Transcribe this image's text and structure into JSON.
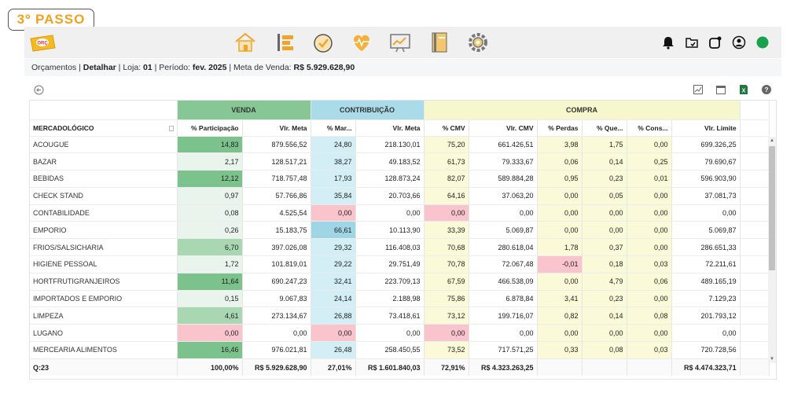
{
  "step_badge": "3º PASSO",
  "logo_text": "ORÇ",
  "breadcrumb": {
    "section": "Orçamentos",
    "sep1": " | ",
    "page": "Detalhar",
    "store_label": " | Loja: ",
    "store": "01",
    "period_label": " | Período: ",
    "period": "fev. 2025",
    "goal_label": " | Meta de Venda: ",
    "goal": "R$ 5.929.628,90"
  },
  "groups": {
    "venda": "VENDA",
    "contribuicao": "CONTRIBUIÇÃO",
    "compra": "COMPRA"
  },
  "headers": [
    "MERCADOLÓGICO",
    "% Participação",
    "Vlr. Meta",
    "% Mar...",
    "Vlr. Meta",
    "% CMV",
    "Vlr. CMV",
    "% Perdas",
    "% Que...",
    "% Cons...",
    "Vlr. Limite"
  ],
  "rows": [
    [
      "ACOUGUE",
      "14,83",
      "879.556,52",
      "24,80",
      "218.130,01",
      "75,20",
      "661.426,51",
      "3,98",
      "1,75",
      "0,00",
      "699.326,25"
    ],
    [
      "BAZAR",
      "2,17",
      "128.517,21",
      "38,27",
      "49.183,52",
      "61,73",
      "79.333,67",
      "0,06",
      "0,14",
      "0,25",
      "79.690,67"
    ],
    [
      "BEBIDAS",
      "12,12",
      "718.757,48",
      "17,93",
      "128.873,24",
      "82,07",
      "589.884,28",
      "0,95",
      "0,23",
      "0,01",
      "596.903,90"
    ],
    [
      "CHECK STAND",
      "0,97",
      "57.766,86",
      "35,84",
      "20.703,66",
      "64,16",
      "37.063,20",
      "0,00",
      "0,05",
      "0,00",
      "37.081,73"
    ],
    [
      "CONTABILIDADE",
      "0,08",
      "4.525,54",
      "0,00",
      "0,00",
      "0,00",
      "0,00",
      "0,00",
      "0,00",
      "0,00",
      "0,00"
    ],
    [
      "EMPORIO",
      "0,26",
      "15.183,75",
      "66,61",
      "10.113,90",
      "33,39",
      "5.069,87",
      "0,00",
      "0,00",
      "0,00",
      "5.069,87"
    ],
    [
      "FRIOS/SALSICHARIA",
      "6,70",
      "397.026,08",
      "29,32",
      "116.408,03",
      "70,68",
      "280.618,04",
      "1,78",
      "0,37",
      "0,00",
      "286.651,33"
    ],
    [
      "HIGIENE PESSOAL",
      "1,72",
      "101.819,01",
      "29,22",
      "29.751,49",
      "70,78",
      "72.067,48",
      "-0,01",
      "0,18",
      "0,03",
      "72.211,61"
    ],
    [
      "HORTFRUTIGRANJEIROS",
      "11,64",
      "690.247,23",
      "32,41",
      "223.709,13",
      "67,59",
      "466.538,09",
      "0,00",
      "4,79",
      "0,06",
      "489.165,19"
    ],
    [
      "IMPORTADOS E EMPORIO",
      "0,15",
      "9.067,83",
      "24,14",
      "2.188,98",
      "75,86",
      "6.878,84",
      "3,41",
      "0,23",
      "0,00",
      "7.129,23"
    ],
    [
      "LIMPEZA",
      "4,61",
      "273.134,67",
      "26,88",
      "73.418,61",
      "73,12",
      "199.716,07",
      "0,82",
      "0,14",
      "0,08",
      "201.793,12"
    ],
    [
      "LUGANO",
      "0,00",
      "0,00",
      "0,00",
      "0,00",
      "0,00",
      "0,00",
      "0,00",
      "0,00",
      "0,00",
      "0,00"
    ],
    [
      "MERCEARIA ALIMENTOS",
      "16,46",
      "976.021,81",
      "26,48",
      "258.450,55",
      "73,52",
      "717.571,25",
      "0,33",
      "0,08",
      "0,03",
      "720.728,56"
    ]
  ],
  "footer": [
    "Q:23",
    "100,00%",
    "R$ 5.929.628,90",
    "27,01%",
    "R$ 1.601.840,03",
    "72,91%",
    "R$ 4.323.263,25",
    "",
    "",
    "",
    "R$ 4.474.323,71"
  ],
  "colors": {
    "venda_dark": "#7cc28d",
    "venda_mid": "#a8d7b2",
    "venda_light": "#e9f4ec",
    "contrib": "#d3eef5",
    "contrib_strong": "#9fd6e6",
    "compra": "#fafad9",
    "danger": "#f9c4cb",
    "status_green": "#18a34a",
    "badge_orange": "#f2a01f"
  }
}
